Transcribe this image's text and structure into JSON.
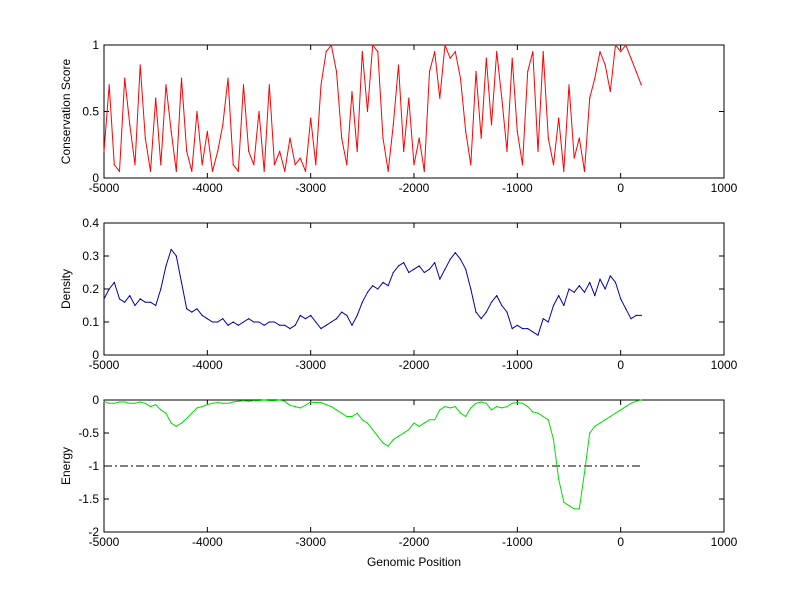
{
  "chart_data": [
    {
      "type": "line",
      "ylabel": "Conservation Score",
      "xlabel": "",
      "xlim": [
        -5000,
        1000
      ],
      "ylim": [
        0,
        1
      ],
      "xticks": [
        "-5000",
        "-4000",
        "-3000",
        "-2000",
        "-1000",
        "0",
        "1000"
      ],
      "yticks": [
        "0",
        "0.5",
        "1"
      ],
      "color": "#ff0000",
      "series": [
        {
          "x": [
            -5000,
            -4950,
            -4900,
            -4850,
            -4800,
            -4750,
            -4700,
            -4650,
            -4600,
            -4550,
            -4500,
            -4450,
            -4400,
            -4350,
            -4300,
            -4250,
            -4200,
            -4150,
            -4100,
            -4050,
            -4000,
            -3950,
            -3900,
            -3850,
            -3800,
            -3750,
            -3700,
            -3650,
            -3600,
            -3550,
            -3500,
            -3450,
            -3400,
            -3350,
            -3300,
            -3250,
            -3200,
            -3150,
            -3100,
            -3050,
            -3000,
            -2950,
            -2900,
            -2850,
            -2800,
            -2750,
            -2700,
            -2650,
            -2600,
            -2550,
            -2500,
            -2450,
            -2400,
            -2350,
            -2300,
            -2250,
            -2200,
            -2150,
            -2100,
            -2050,
            -2000,
            -1950,
            -1900,
            -1850,
            -1800,
            -1750,
            -1700,
            -1650,
            -1600,
            -1550,
            -1500,
            -1450,
            -1400,
            -1350,
            -1300,
            -1250,
            -1200,
            -1150,
            -1100,
            -1050,
            -1000,
            -950,
            -900,
            -850,
            -800,
            -750,
            -700,
            -650,
            -600,
            -550,
            -500,
            -450,
            -400,
            -350,
            -300,
            -250,
            -200,
            -150,
            -100,
            -50,
            0,
            50,
            100,
            150,
            200
          ],
          "values": [
            0.2,
            0.7,
            0.1,
            0.05,
            0.75,
            0.4,
            0.1,
            0.85,
            0.3,
            0.05,
            0.6,
            0.1,
            0.7,
            0.35,
            0.05,
            0.75,
            0.2,
            0.05,
            0.5,
            0.1,
            0.35,
            0.05,
            0.2,
            0.4,
            0.75,
            0.1,
            0.05,
            0.7,
            0.2,
            0.1,
            0.5,
            0.05,
            0.7,
            0.1,
            0.2,
            0.05,
            0.3,
            0.1,
            0.15,
            0.05,
            0.45,
            0.1,
            0.7,
            0.95,
            1,
            0.8,
            0.3,
            0.1,
            0.65,
            0.2,
            0.95,
            0.5,
            1,
            0.95,
            0.3,
            0.05,
            0.4,
            0.85,
            0.2,
            0.6,
            0.1,
            0.3,
            0.05,
            0.8,
            0.95,
            0.6,
            1,
            0.9,
            0.95,
            0.75,
            0.35,
            0.1,
            0.8,
            0.3,
            0.9,
            0.4,
            0.95,
            0.6,
            0.2,
            0.9,
            0.35,
            0.1,
            0.8,
            0.95,
            0.2,
            0.95,
            0.3,
            0.1,
            0.45,
            0.05,
            0.7,
            0.15,
            0.3,
            0.05,
            0.6,
            0.75,
            0.95,
            0.85,
            0.65,
            1,
            0.95,
            1,
            0.9,
            0.8,
            0.7
          ]
        }
      ]
    },
    {
      "type": "line",
      "ylabel": "Density",
      "xlabel": "",
      "xlim": [
        -5000,
        1000
      ],
      "ylim": [
        0,
        0.4
      ],
      "xticks": [
        "-5000",
        "-4000",
        "-3000",
        "-2000",
        "-1000",
        "0",
        "1000"
      ],
      "yticks": [
        "0",
        "0.1",
        "0.2",
        "0.3",
        "0.4"
      ],
      "color": "#0000b0",
      "series": [
        {
          "x": [
            -5000,
            -4950,
            -4900,
            -4850,
            -4800,
            -4750,
            -4700,
            -4650,
            -4600,
            -4550,
            -4500,
            -4450,
            -4400,
            -4350,
            -4300,
            -4250,
            -4200,
            -4150,
            -4100,
            -4050,
            -4000,
            -3950,
            -3900,
            -3850,
            -3800,
            -3750,
            -3700,
            -3650,
            -3600,
            -3550,
            -3500,
            -3450,
            -3400,
            -3350,
            -3300,
            -3250,
            -3200,
            -3150,
            -3100,
            -3050,
            -3000,
            -2950,
            -2900,
            -2850,
            -2800,
            -2750,
            -2700,
            -2650,
            -2600,
            -2550,
            -2500,
            -2450,
            -2400,
            -2350,
            -2300,
            -2250,
            -2200,
            -2150,
            -2100,
            -2050,
            -2000,
            -1950,
            -1900,
            -1850,
            -1800,
            -1750,
            -1700,
            -1650,
            -1600,
            -1550,
            -1500,
            -1450,
            -1400,
            -1350,
            -1300,
            -1250,
            -1200,
            -1150,
            -1100,
            -1050,
            -1000,
            -950,
            -900,
            -850,
            -800,
            -750,
            -700,
            -650,
            -600,
            -550,
            -500,
            -450,
            -400,
            -350,
            -300,
            -250,
            -200,
            -150,
            -100,
            -50,
            0,
            50,
            100,
            150,
            200
          ],
          "values": [
            0.17,
            0.2,
            0.22,
            0.17,
            0.16,
            0.18,
            0.15,
            0.17,
            0.16,
            0.16,
            0.15,
            0.2,
            0.27,
            0.32,
            0.3,
            0.22,
            0.14,
            0.13,
            0.14,
            0.12,
            0.11,
            0.1,
            0.1,
            0.11,
            0.09,
            0.1,
            0.09,
            0.1,
            0.11,
            0.1,
            0.1,
            0.09,
            0.1,
            0.1,
            0.09,
            0.09,
            0.08,
            0.09,
            0.12,
            0.11,
            0.12,
            0.1,
            0.08,
            0.09,
            0.1,
            0.11,
            0.13,
            0.12,
            0.09,
            0.12,
            0.16,
            0.19,
            0.21,
            0.2,
            0.22,
            0.21,
            0.25,
            0.27,
            0.28,
            0.25,
            0.26,
            0.27,
            0.25,
            0.26,
            0.28,
            0.23,
            0.26,
            0.29,
            0.31,
            0.29,
            0.26,
            0.2,
            0.13,
            0.11,
            0.13,
            0.16,
            0.18,
            0.15,
            0.13,
            0.08,
            0.09,
            0.08,
            0.08,
            0.07,
            0.06,
            0.11,
            0.1,
            0.15,
            0.18,
            0.15,
            0.2,
            0.19,
            0.21,
            0.19,
            0.22,
            0.18,
            0.23,
            0.2,
            0.24,
            0.22,
            0.17,
            0.14,
            0.11,
            0.12,
            0.12
          ]
        }
      ]
    },
    {
      "type": "line",
      "ylabel": "Energy",
      "xlabel": "Genomic Position",
      "xlim": [
        -5000,
        1000
      ],
      "ylim": [
        -2,
        0
      ],
      "xticks": [
        "-5000",
        "-4000",
        "-3000",
        "-2000",
        "-1000",
        "0",
        "1000"
      ],
      "yticks": [
        "-2",
        "-1.5",
        "-1",
        "-0.5",
        "0"
      ],
      "color": "#00dd00",
      "reference_line": {
        "y": -1,
        "x_range": [
          -5000,
          200
        ],
        "style": "dash-dot",
        "color": "#000000"
      },
      "series": [
        {
          "x": [
            -5000,
            -4950,
            -4900,
            -4850,
            -4800,
            -4750,
            -4700,
            -4650,
            -4600,
            -4550,
            -4500,
            -4450,
            -4400,
            -4350,
            -4300,
            -4250,
            -4200,
            -4150,
            -4100,
            -4050,
            -4000,
            -3950,
            -3900,
            -3850,
            -3800,
            -3750,
            -3700,
            -3650,
            -3600,
            -3550,
            -3500,
            -3450,
            -3400,
            -3350,
            -3300,
            -3250,
            -3200,
            -3150,
            -3100,
            -3050,
            -3000,
            -2950,
            -2900,
            -2850,
            -2800,
            -2750,
            -2700,
            -2650,
            -2600,
            -2550,
            -2500,
            -2450,
            -2400,
            -2350,
            -2300,
            -2250,
            -2200,
            -2150,
            -2100,
            -2050,
            -2000,
            -1950,
            -1900,
            -1850,
            -1800,
            -1750,
            -1700,
            -1650,
            -1600,
            -1550,
            -1500,
            -1450,
            -1400,
            -1350,
            -1300,
            -1250,
            -1200,
            -1150,
            -1100,
            -1050,
            -1000,
            -950,
            -900,
            -850,
            -800,
            -750,
            -700,
            -650,
            -600,
            -550,
            -500,
            -450,
            -400,
            -350,
            -300,
            -250,
            -200,
            -150,
            -100,
            -50,
            0,
            50,
            100,
            150,
            200
          ],
          "values": [
            -0.02,
            -0.05,
            -0.05,
            -0.03,
            -0.03,
            -0.05,
            -0.05,
            -0.03,
            -0.05,
            -0.1,
            -0.07,
            -0.15,
            -0.2,
            -0.35,
            -0.4,
            -0.35,
            -0.28,
            -0.2,
            -0.12,
            -0.1,
            -0.07,
            -0.05,
            -0.04,
            -0.05,
            -0.05,
            -0.03,
            -0.02,
            -0.01,
            -0.02,
            -0.01,
            -0.01,
            0,
            -0.01,
            -0.01,
            0,
            -0.02,
            -0.08,
            -0.1,
            -0.12,
            -0.08,
            -0.03,
            -0.04,
            -0.04,
            -0.07,
            -0.1,
            -0.15,
            -0.2,
            -0.25,
            -0.25,
            -0.2,
            -0.3,
            -0.35,
            -0.45,
            -0.55,
            -0.65,
            -0.7,
            -0.6,
            -0.55,
            -0.5,
            -0.45,
            -0.35,
            -0.4,
            -0.35,
            -0.3,
            -0.3,
            -0.15,
            -0.1,
            -0.12,
            -0.1,
            -0.2,
            -0.25,
            -0.12,
            -0.05,
            -0.03,
            -0.05,
            -0.15,
            -0.1,
            -0.12,
            -0.1,
            -0.05,
            -0.04,
            -0.05,
            -0.1,
            -0.18,
            -0.2,
            -0.25,
            -0.3,
            -0.6,
            -1.2,
            -1.55,
            -1.6,
            -1.65,
            -1.65,
            -1.1,
            -0.5,
            -0.4,
            -0.35,
            -0.3,
            -0.25,
            -0.2,
            -0.15,
            -0.1,
            -0.05,
            -0.02,
            0
          ]
        }
      ]
    }
  ]
}
